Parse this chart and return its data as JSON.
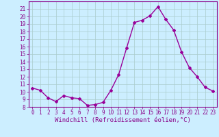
{
  "x": [
    0,
    1,
    2,
    3,
    4,
    5,
    6,
    7,
    8,
    9,
    10,
    11,
    12,
    13,
    14,
    15,
    16,
    17,
    18,
    19,
    20,
    21,
    22,
    23
  ],
  "y": [
    10.5,
    10.2,
    9.2,
    8.7,
    9.5,
    9.2,
    9.1,
    8.2,
    8.3,
    8.6,
    10.2,
    12.3,
    15.8,
    19.2,
    19.5,
    20.1,
    21.3,
    19.6,
    18.2,
    15.3,
    13.2,
    12.0,
    10.6,
    10.1
  ],
  "line_color": "#990099",
  "marker": "D",
  "marker_size": 2,
  "bg_color": "#cceeff",
  "grid_color": "#aacccc",
  "xlabel": "Windchill (Refroidissement éolien,°C)",
  "ylim": [
    8,
    22
  ],
  "xlim": [
    -0.5,
    23.5
  ],
  "yticks": [
    8,
    9,
    10,
    11,
    12,
    13,
    14,
    15,
    16,
    17,
    18,
    19,
    20,
    21
  ],
  "xticks": [
    0,
    1,
    2,
    3,
    4,
    5,
    6,
    7,
    8,
    9,
    10,
    11,
    12,
    13,
    14,
    15,
    16,
    17,
    18,
    19,
    20,
    21,
    22,
    23
  ],
  "tick_label_fontsize": 5.5,
  "xlabel_fontsize": 6.5,
  "tick_color": "#880088",
  "spine_color": "#880088",
  "linewidth": 1.0
}
